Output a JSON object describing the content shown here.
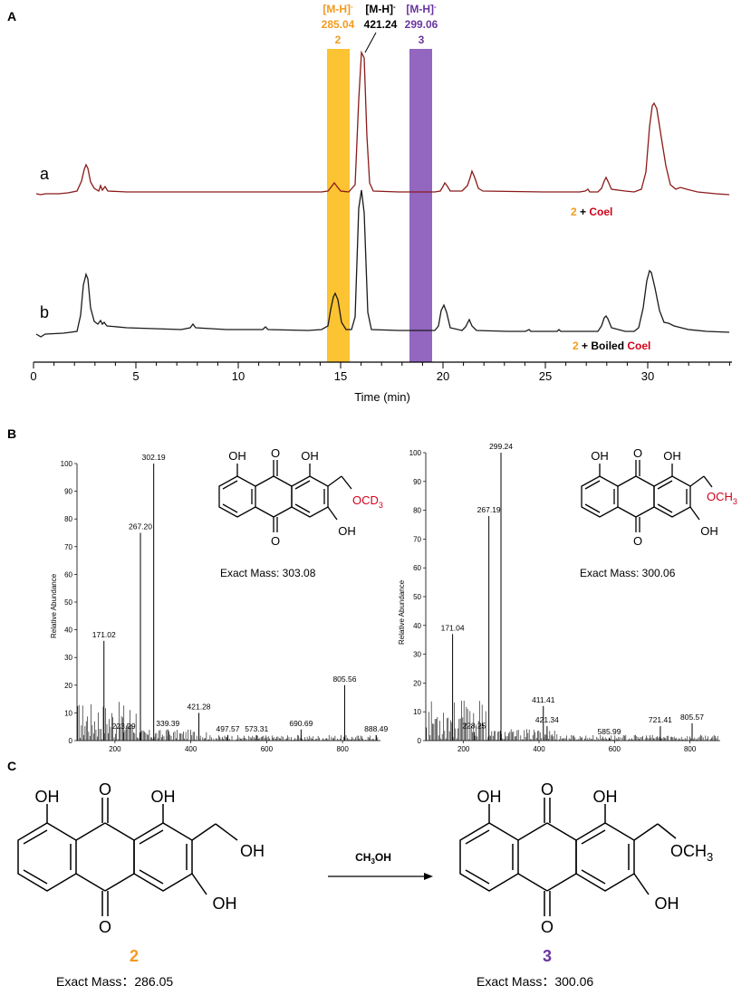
{
  "panels": {
    "A": "A",
    "B": "B",
    "C": "C"
  },
  "colors": {
    "orange": "#f39a1f",
    "purple": "#6b35a0",
    "red": "#d0021b",
    "trace_a": "#8b1a1a",
    "trace_b": "#1a1a1a",
    "band_orange": "#fcc332",
    "band_purple": "#9366c0"
  },
  "chromatogram": {
    "xlabel": "Time (min)",
    "ticks": [
      "0",
      "5",
      "10",
      "15",
      "20",
      "25",
      "30"
    ],
    "trace_a_label": "a",
    "trace_b_label": "b",
    "ann_a": {
      "num": "2",
      "plus": " + ",
      "enzyme": "Coel"
    },
    "ann_b": {
      "num": "2",
      "mid": " + Boiled ",
      "enzyme": "Coel"
    },
    "ions": [
      {
        "label": "[M-H]",
        "sup": "-",
        "mz": "285.04",
        "num": "2"
      },
      {
        "label": "[M-H]",
        "sup": "-",
        "mz": "421.24",
        "num": ""
      },
      {
        "label": "[M-H]",
        "sup": "-",
        "mz": "299.06",
        "num": "3"
      }
    ]
  },
  "chart_data": [
    {
      "type": "line",
      "xlabel": "Time (min)",
      "xlim": [
        0,
        34
      ],
      "series": [
        {
          "name": "a",
          "x": [
            0,
            2.5,
            14.6,
            15.9,
            18.8,
            20.2,
            26.7,
            27.8,
            30.2,
            31.7,
            34
          ],
          "y": [
            0,
            30,
            10,
            150,
            10,
            25,
            2,
            15,
            90,
            8,
            0
          ]
        },
        {
          "name": "b",
          "x": [
            0,
            2.5,
            7.8,
            11.3,
            14.6,
            15.8,
            18.8,
            20.2,
            22.6,
            24,
            27.8,
            30.0,
            31.3,
            34
          ],
          "y": [
            0,
            60,
            4,
            3,
            40,
            150,
            30,
            12,
            2,
            1,
            16,
            65,
            10,
            0
          ]
        }
      ],
      "highlight_bands": [
        [
          14.3,
          15.4
        ],
        [
          18.3,
          19.3
        ]
      ]
    },
    {
      "type": "bar",
      "ylabel": "Relative Abundance",
      "xlim": [
        100,
        900
      ],
      "ylim": [
        0,
        100
      ],
      "yticks": [
        "0",
        "10",
        "20",
        "30",
        "40",
        "50",
        "60",
        "70",
        "80",
        "90",
        "100"
      ],
      "xticks": [
        "200",
        "400",
        "600",
        "800"
      ],
      "peaks": [
        {
          "mz": 171.02,
          "value": 36,
          "label": "171.02"
        },
        {
          "mz": 223.29,
          "value": 3,
          "label": "223.29"
        },
        {
          "mz": 267.2,
          "value": 75,
          "label": "267.20"
        },
        {
          "mz": 302.19,
          "value": 100,
          "label": "302.19"
        },
        {
          "mz": 339.39,
          "value": 4,
          "label": "339.39"
        },
        {
          "mz": 421.28,
          "value": 10,
          "label": "421.28"
        },
        {
          "mz": 497.57,
          "value": 2,
          "label": "497.57"
        },
        {
          "mz": 573.31,
          "value": 2,
          "label": "573.31"
        },
        {
          "mz": 690.69,
          "value": 4,
          "label": "690.69"
        },
        {
          "mz": 805.56,
          "value": 20,
          "label": "805.56"
        },
        {
          "mz": 888.49,
          "value": 2,
          "label": "888.49"
        }
      ]
    },
    {
      "type": "bar",
      "ylabel": "Relative Abundance",
      "xlim": [
        100,
        880
      ],
      "ylim": [
        0,
        100
      ],
      "yticks": [
        "0",
        "10",
        "20",
        "30",
        "40",
        "50",
        "60",
        "70",
        "80",
        "90",
        "100"
      ],
      "xticks": [
        "200",
        "400",
        "600",
        "800"
      ],
      "peaks": [
        {
          "mz": 171.04,
          "value": 37,
          "label": "171.04"
        },
        {
          "mz": 228.25,
          "value": 3,
          "label": "228.25"
        },
        {
          "mz": 267.19,
          "value": 78,
          "label": "267.19"
        },
        {
          "mz": 299.24,
          "value": 100,
          "label": "299.24"
        },
        {
          "mz": 411.41,
          "value": 12,
          "label": "411.41"
        },
        {
          "mz": 421.34,
          "value": 5,
          "label": "421.34"
        },
        {
          "mz": 585.99,
          "value": 1,
          "label": "585.99"
        },
        {
          "mz": 721.41,
          "value": 5,
          "label": "721.41"
        },
        {
          "mz": 805.57,
          "value": 6,
          "label": "805.57"
        }
      ]
    }
  ],
  "structures": {
    "oh": "OH",
    "o": "O",
    "ocd3": "OCD",
    "ocd3_sub": "3",
    "och3": "OCH",
    "och3_sub": "3",
    "mass_left": "Exact Mass: 303.08",
    "mass_right": "Exact Mass: 300.06",
    "reagent": "CH",
    "reagent_sub": "3",
    "reagent_tail": "OH",
    "cmp2": "2",
    "cmp3": "3",
    "mass2": "Exact Mass：286.05",
    "mass3": "Exact Mass：300.06"
  }
}
